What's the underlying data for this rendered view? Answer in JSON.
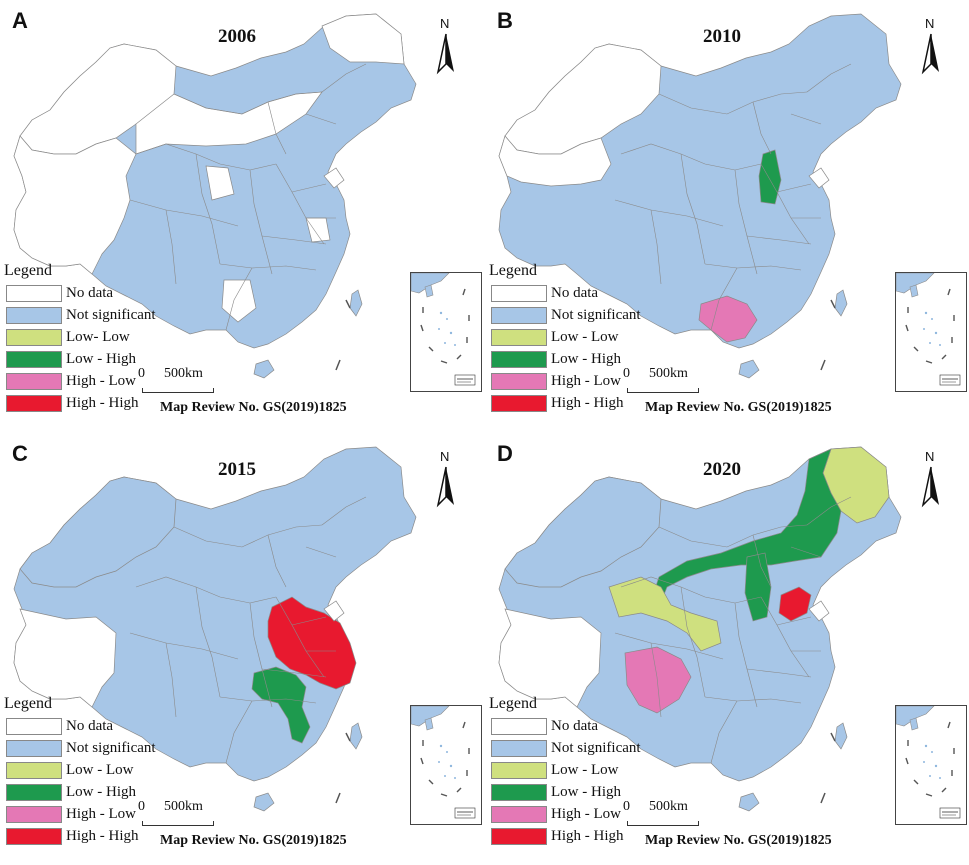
{
  "legend": {
    "title": "Legend",
    "items": [
      {
        "label": "No data",
        "color": "#ffffff"
      },
      {
        "label": "Not significant",
        "color": "#a7c6e7"
      },
      {
        "label": "Low- Low",
        "color": "#cfe07f"
      },
      {
        "label": "Low - High",
        "color": "#1e9a4e"
      },
      {
        "label": "High - Low",
        "color": "#e478b5"
      },
      {
        "label": "High - High",
        "color": "#e8192f"
      }
    ]
  },
  "legend_variants": {
    "low_low_alt": "Low - Low"
  },
  "common": {
    "north": "N",
    "scale_zero": "0",
    "scale_km": "500km",
    "review": "Map Review No. GS(2019)1825"
  },
  "panels": [
    {
      "id": "A",
      "year": "2006"
    },
    {
      "id": "B",
      "year": "2010"
    },
    {
      "id": "C",
      "year": "2015"
    },
    {
      "id": "D",
      "year": "2020"
    }
  ],
  "colors": {
    "base": "#a7c6e7",
    "border": "#8a8a8a",
    "no_data": "#ffffff",
    "low_low": "#cfe07f",
    "low_high": "#1e9a4e",
    "high_low": "#e478b5",
    "high_high": "#e8192f",
    "sea": "#bcd8ef"
  }
}
